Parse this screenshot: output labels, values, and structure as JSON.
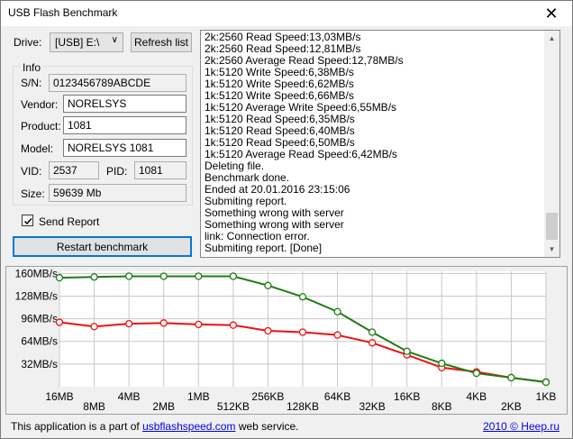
{
  "window": {
    "title": "USB Flash Benchmark",
    "close_glyph": "✕"
  },
  "drive": {
    "label": "Drive:",
    "value": "[USB] E:\\",
    "refresh_label": "Refresh list"
  },
  "info": {
    "group_title": "Info",
    "sn_label": "S/N:",
    "sn_value": "0123456789ABCDE",
    "vendor_label": "Vendor:",
    "vendor_value": "NORELSYS",
    "product_label": "Product:",
    "product_value": "1081",
    "model_label": "Model:",
    "model_value": "NORELSYS 1081",
    "vid_label": "VID:",
    "vid_value": "2537",
    "pid_label": "PID:",
    "pid_value": "1081",
    "size_label": "Size:",
    "size_value": "59639 Mb"
  },
  "send_report": {
    "label": "Send Report",
    "checked": true
  },
  "restart_label": "Restart benchmark",
  "log_lines": [
    "2k:2560 Read Speed:13,03MB/s",
    "2k:2560 Read Speed:12,81MB/s",
    "2k:2560 Average Read Speed:12,78MB/s",
    "1k:5120 Write Speed:6,38MB/s",
    "1k:5120 Write Speed:6,62MB/s",
    "1k:5120 Write Speed:6,66MB/s",
    "1k:5120 Average Write Speed:6,55MB/s",
    "1k:5120 Read Speed:6,35MB/s",
    "1k:5120 Read Speed:6,40MB/s",
    "1k:5120 Read Speed:6,50MB/s",
    "1k:5120 Average Read Speed:6,42MB/s",
    "Deleting file.",
    "Benchmark done.",
    "Ended at 20.01.2016 23:15:06",
    "Submiting report.",
    "Something wrong with server",
    "Something wrong with server",
    "link: Connection error.",
    "Submiting report. [Done]"
  ],
  "footer": {
    "prefix": "This application is a part of ",
    "link": "usbflashspeed.com",
    "suffix": " web service.",
    "copyright": "2010 © Heep.ru"
  },
  "colors": {
    "read": "#1e7d12",
    "write": "#f01010",
    "grid": "#c8c8c8",
    "link": "#0000ee"
  },
  "chart_data": {
    "type": "line",
    "categories": [
      "16MB",
      "8MB",
      "4MB",
      "2MB",
      "1MB",
      "512KB",
      "256KB",
      "128KB",
      "64KB",
      "32KB",
      "16KB",
      "8KB",
      "4KB",
      "2KB",
      "1KB"
    ],
    "y_ticks": [
      "160MB/s",
      "128MB/s",
      "96MB/s",
      "64MB/s",
      "32MB/s"
    ],
    "y_tick_values": [
      160,
      128,
      96,
      64,
      32
    ],
    "ylim": [
      0,
      163
    ],
    "series": [
      {
        "key": "read",
        "values": [
          154,
          155,
          156,
          156,
          156,
          156,
          143,
          127,
          106,
          77,
          50,
          33,
          19,
          12.8,
          6.4
        ]
      },
      {
        "key": "write",
        "values": [
          91,
          85,
          89,
          90,
          88,
          87,
          79,
          77,
          73,
          62,
          45,
          27,
          21,
          12.8,
          6.6
        ]
      }
    ]
  }
}
